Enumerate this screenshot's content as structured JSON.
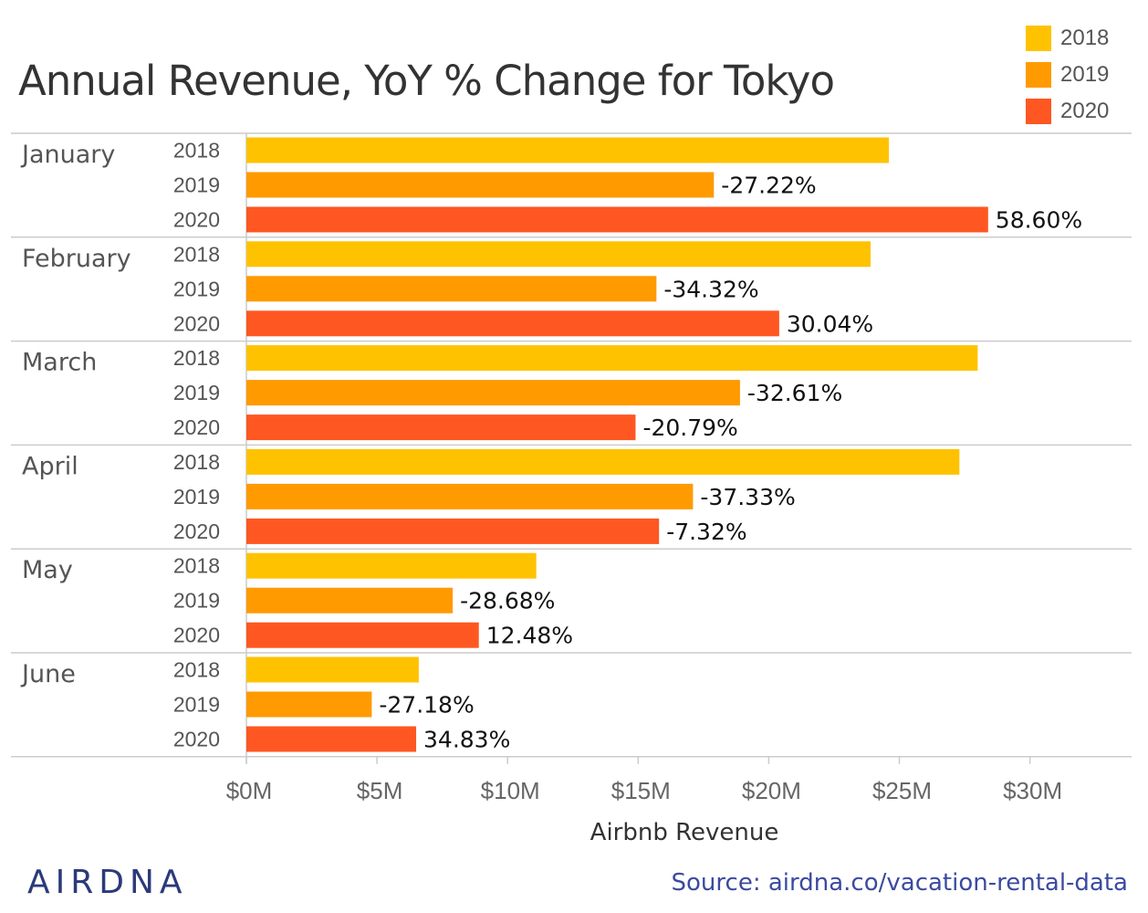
{
  "colors": {
    "2018": "#ffc200",
    "2019": "#ff9a00",
    "2020": "#ff5722",
    "text": "#333333",
    "tick": "#666666",
    "grid": "#cccccc",
    "brand": "#2b3a7a"
  },
  "legend": [
    {
      "label": "2018",
      "color": "#ffc200"
    },
    {
      "label": "2019",
      "color": "#ff9a00"
    },
    {
      "label": "2020",
      "color": "#ff5722"
    }
  ],
  "brand": "AIRDNA",
  "source": "Source: airdna.co/vacation-rental-data",
  "chart_data": {
    "type": "bar",
    "orientation": "horizontal",
    "title": "Annual Revenue, YoY % Change for Tokyo",
    "xlabel": "Airbnb Revenue",
    "ylabel": "",
    "xlim": [
      0,
      34
    ],
    "x_ticks": [
      {
        "value": 0,
        "label": "$0M"
      },
      {
        "value": 5,
        "label": "$5M"
      },
      {
        "value": 10,
        "label": "$10M"
      },
      {
        "value": 15,
        "label": "$15M"
      },
      {
        "value": 20,
        "label": "$20M"
      },
      {
        "value": 25,
        "label": "$25M"
      },
      {
        "value": 30,
        "label": "$30M"
      }
    ],
    "grid": false,
    "legend_position": "top-right",
    "years": [
      "2018",
      "2019",
      "2020"
    ],
    "groups": [
      {
        "month": "January",
        "bars": [
          {
            "year": "2018",
            "value": 24.6,
            "label": ""
          },
          {
            "year": "2019",
            "value": 17.9,
            "label": "-27.22%"
          },
          {
            "year": "2020",
            "value": 28.4,
            "label": "58.60%"
          }
        ]
      },
      {
        "month": "February",
        "bars": [
          {
            "year": "2018",
            "value": 23.9,
            "label": ""
          },
          {
            "year": "2019",
            "value": 15.7,
            "label": "-34.32%"
          },
          {
            "year": "2020",
            "value": 20.4,
            "label": "30.04%"
          }
        ]
      },
      {
        "month": "March",
        "bars": [
          {
            "year": "2018",
            "value": 28.0,
            "label": ""
          },
          {
            "year": "2019",
            "value": 18.9,
            "label": "-32.61%"
          },
          {
            "year": "2020",
            "value": 14.9,
            "label": "-20.79%"
          }
        ]
      },
      {
        "month": "April",
        "bars": [
          {
            "year": "2018",
            "value": 27.3,
            "label": ""
          },
          {
            "year": "2019",
            "value": 17.1,
            "label": "-37.33%"
          },
          {
            "year": "2020",
            "value": 15.8,
            "label": "-7.32%"
          }
        ]
      },
      {
        "month": "May",
        "bars": [
          {
            "year": "2018",
            "value": 11.1,
            "label": ""
          },
          {
            "year": "2019",
            "value": 7.9,
            "label": "-28.68%"
          },
          {
            "year": "2020",
            "value": 8.9,
            "label": "12.48%"
          }
        ]
      },
      {
        "month": "June",
        "bars": [
          {
            "year": "2018",
            "value": 6.6,
            "label": ""
          },
          {
            "year": "2019",
            "value": 4.8,
            "label": "-27.18%"
          },
          {
            "year": "2020",
            "value": 6.5,
            "label": "34.83%"
          }
        ]
      }
    ]
  }
}
